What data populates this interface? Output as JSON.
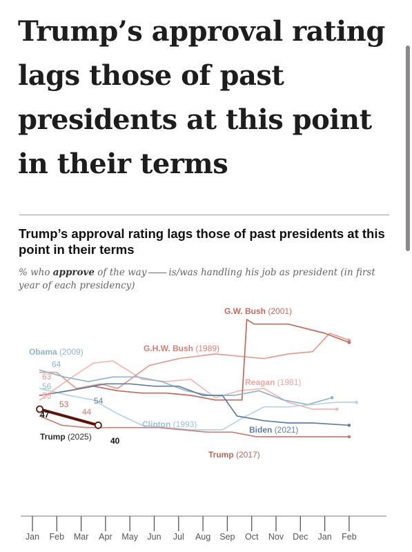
{
  "headline": "Trump’s approval rating lags those of past presidents at this point in their terms",
  "chart_title": "Trump’s approval rating lags those of past presidents at this point in their terms",
  "subtitle": {
    "prefix": "% who",
    "bold": "approve",
    "middle": "of the way",
    "suffix": "is/was handling his job as president (in first year of each presidency)"
  },
  "colors": {
    "trump_2025": "#5e1209",
    "trump_2017": "#c97d73",
    "gw_bush": "#c4685c",
    "ghw_bush": "#e39b90",
    "reagan": "#f2b8b0",
    "obama": "#8fb4cf",
    "biden": "#5f7f9f",
    "clinton": "#b7d3e6"
  },
  "chart_data": {
    "type": "line",
    "x_axis": {
      "tick_labels": [
        "Jan",
        "Feb",
        "Mar",
        "Apr",
        "May",
        "Jun",
        "Jul",
        "Aug",
        "Sep",
        "Oct",
        "Nov",
        "Dec",
        "Jan",
        "Feb"
      ],
      "range_months": [
        0,
        13
      ]
    },
    "ylim": [
      20,
      95
    ],
    "series": [
      {
        "name": "Reagan (1981)",
        "color_key": "reagan",
        "label_color": "#e8a89f",
        "start_value": "51",
        "points": [
          [
            0.3,
            51
          ],
          [
            1.5,
            60
          ],
          [
            2.5,
            67
          ],
          [
            3.3,
            68
          ],
          [
            4.5,
            60
          ],
          [
            5.5,
            59
          ],
          [
            6.5,
            60
          ],
          [
            7.5,
            52
          ],
          [
            8.5,
            55
          ],
          [
            9.5,
            56
          ],
          [
            10.5,
            50
          ],
          [
            11.5,
            47
          ],
          [
            12.5,
            47
          ]
        ]
      },
      {
        "name": "G.H.W. Bush (1989)",
        "color_key": "ghw_bush",
        "label_color": "#d77f73",
        "start_value": "63",
        "points": [
          [
            0.3,
            63
          ],
          [
            1.0,
            63
          ],
          [
            1.8,
            56
          ],
          [
            2.8,
            58
          ],
          [
            3.5,
            56
          ],
          [
            4.8,
            66
          ],
          [
            6.0,
            69
          ],
          [
            7.5,
            71
          ],
          [
            8.5,
            70
          ],
          [
            9.5,
            69
          ],
          [
            10.5,
            71
          ],
          [
            11.5,
            72
          ],
          [
            12.2,
            80
          ],
          [
            13.0,
            77
          ]
        ]
      },
      {
        "name": "G.W. Bush (2001)",
        "color_key": "gw_bush",
        "label_color": "#c4685c",
        "start_value": "",
        "points": [
          [
            0.3,
            53
          ],
          [
            1.5,
            55
          ],
          [
            2.5,
            57
          ],
          [
            3.5,
            55
          ],
          [
            4.5,
            54
          ],
          [
            5.5,
            54
          ],
          [
            6.5,
            53
          ],
          [
            7.5,
            51
          ],
          [
            8.6,
            51
          ],
          [
            8.8,
            86
          ],
          [
            9.1,
            84
          ],
          [
            10.5,
            84
          ],
          [
            12.0,
            80
          ],
          [
            13.0,
            76
          ]
        ]
      },
      {
        "name": "Obama (2009)",
        "color_key": "obama",
        "label_color": "#8fb4cf",
        "start_value": "64",
        "points": [
          [
            0.3,
            64
          ],
          [
            1.3,
            61
          ],
          [
            2.3,
            59
          ],
          [
            3.3,
            61
          ],
          [
            4.3,
            61
          ],
          [
            5.3,
            59
          ],
          [
            6.3,
            55
          ],
          [
            7.3,
            53
          ],
          [
            8.3,
            53
          ],
          [
            9.3,
            55
          ],
          [
            10.3,
            51
          ],
          [
            11.3,
            49
          ],
          [
            12.3,
            52
          ]
        ]
      },
      {
        "name": "Clinton (1993)",
        "color_key": "clinton",
        "label_color": "#9bc0d9",
        "start_value": "56",
        "points": [
          [
            0.3,
            56
          ],
          [
            1.5,
            53
          ],
          [
            2.5,
            51
          ],
          [
            3.5,
            45
          ],
          [
            4.5,
            40
          ],
          [
            5.5,
            39
          ],
          [
            6.5,
            38
          ],
          [
            7.8,
            38
          ],
          [
            8.6,
            43
          ],
          [
            9.5,
            48
          ],
          [
            10.5,
            48
          ],
          [
            11.5,
            49
          ],
          [
            12.5,
            50
          ],
          [
            13.3,
            50
          ]
        ]
      },
      {
        "name": "Trump (2017)",
        "color_key": "trump_2017",
        "label_color": "#b8675d",
        "start_value": "",
        "points": [
          [
            0.3,
            44
          ],
          [
            1.2,
            40
          ],
          [
            2.2,
            39
          ],
          [
            3.2,
            39
          ],
          [
            4.2,
            39
          ],
          [
            5.2,
            39
          ],
          [
            6.2,
            38
          ],
          [
            7.2,
            37
          ],
          [
            8.2,
            37
          ],
          [
            9.2,
            35
          ],
          [
            10.2,
            35
          ],
          [
            11.2,
            35
          ],
          [
            12.2,
            35
          ],
          [
            13.0,
            35
          ]
        ]
      },
      {
        "name": "Biden (2021)",
        "color_key": "biden",
        "label_color": "#5f7f9f",
        "start_value": "54",
        "points": [
          [
            0.9,
            54
          ],
          [
            2.0,
            56
          ],
          [
            3.0,
            58
          ],
          [
            4.0,
            58
          ],
          [
            5.0,
            57
          ],
          [
            6.0,
            57
          ],
          [
            7.0,
            53
          ],
          [
            7.8,
            53
          ],
          [
            8.4,
            44
          ],
          [
            9.5,
            42
          ],
          [
            10.5,
            41
          ],
          [
            11.5,
            41
          ],
          [
            13.0,
            40
          ]
        ]
      },
      {
        "name": "Trump (2025)",
        "color_key": "trump_2025",
        "label_color": "#2a2a2a",
        "start_value": "47",
        "points": [
          [
            0.3,
            47
          ],
          [
            2.7,
            40
          ]
        ]
      }
    ],
    "value_labels": [
      {
        "text": "64",
        "color_key": "obama"
      },
      {
        "text": "63",
        "color_key": "ghw_bush"
      },
      {
        "text": "56",
        "color_key": "obama"
      },
      {
        "text": "56",
        "color_key": "clinton"
      },
      {
        "text": "55",
        "color_key": "reagan"
      },
      {
        "text": "53",
        "color_key": "gw_bush"
      },
      {
        "text": "54",
        "color_key": "biden"
      },
      {
        "text": "44",
        "color_key": "trump_2017"
      },
      {
        "text": "47",
        "color_key": "trump_2025"
      },
      {
        "text": "40",
        "color_key": "trump_2025"
      }
    ]
  }
}
